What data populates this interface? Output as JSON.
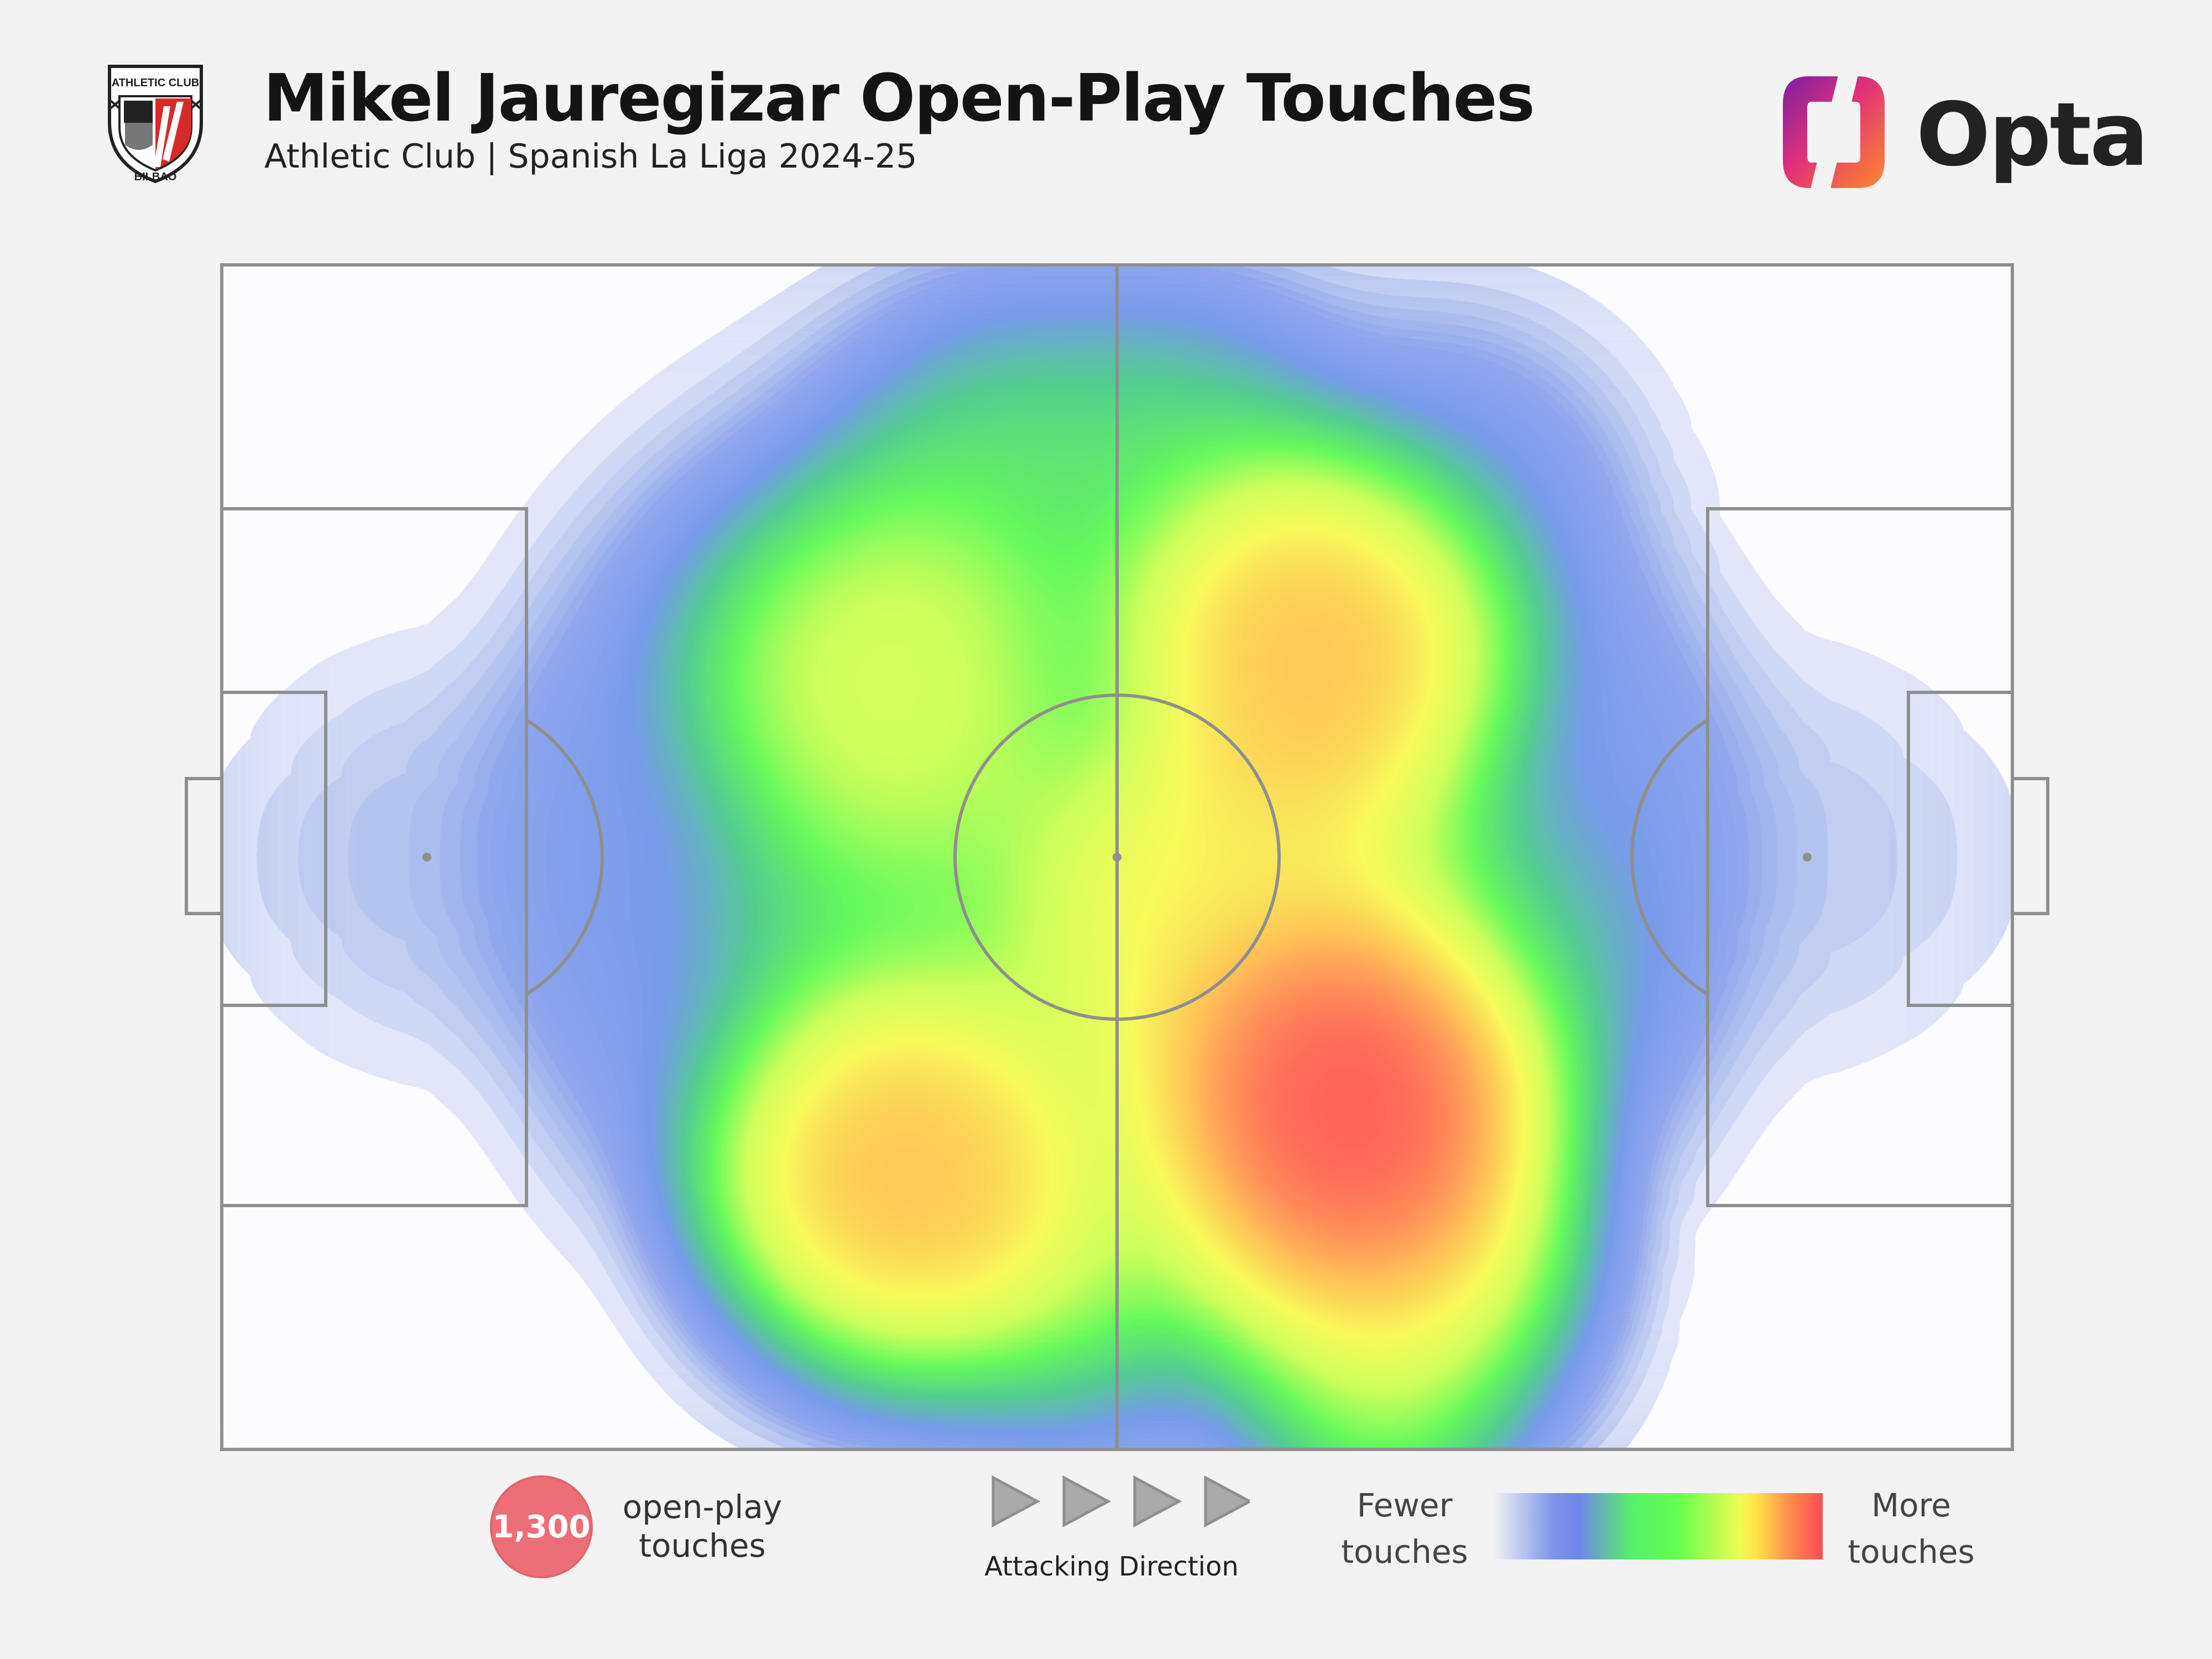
{
  "header": {
    "title": "Mikel Jauregizar Open-Play Touches",
    "subtitle": "Athletic Club | Spanish La Liga 2024-25",
    "crest_top_text": "ATHLETIC CLUB",
    "crest_bottom_text": "BILBAO",
    "brand_name": "Opta"
  },
  "chart_data": {
    "type": "heatmap",
    "title": "Mikel Jauregizar Open-Play Touches",
    "subtitle": "Athletic Club | Spanish La Liga 2024-25",
    "attacking_direction": "left-to-right",
    "colorscale": [
      "#7f95e8",
      "#64ff4f",
      "#f4fb55",
      "#ff4d52"
    ],
    "hotspots": [
      {
        "x": 37,
        "y": 35,
        "intensity": 0.62
      },
      {
        "x": 38,
        "y": 77,
        "intensity": 0.8
      },
      {
        "x": 61,
        "y": 33,
        "intensity": 0.8
      },
      {
        "x": 55,
        "y": 55,
        "intensity": 0.7
      },
      {
        "x": 63,
        "y": 71,
        "intensity": 0.98
      },
      {
        "x": 65,
        "y": 83,
        "intensity": 0.7
      },
      {
        "x": 60,
        "y": 52,
        "intensity": 0.6
      },
      {
        "x": 45,
        "y": 52,
        "intensity": 0.5
      },
      {
        "x": 47,
        "y": 80,
        "intensity": 0.55
      },
      {
        "x": 44,
        "y": 20,
        "intensity": 0.45
      },
      {
        "x": 53,
        "y": 20,
        "intensity": 0.45
      },
      {
        "x": 38,
        "y": 56,
        "intensity": 0.45
      },
      {
        "x": 69,
        "y": 60,
        "intensity": 0.4
      },
      {
        "x": 12,
        "y": 50,
        "intensity": 0.14
      },
      {
        "x": 88,
        "y": 50,
        "intensity": 0.1
      },
      {
        "x": 68,
        "y": 22,
        "intensity": 0.3
      }
    ]
  },
  "legend": {
    "total_touches": "1,300",
    "touches_caption": [
      "open-play",
      "touches"
    ],
    "attacking_direction_label": "Attacking Direction",
    "arrow_count": 4,
    "fewer_label": [
      "Fewer",
      "touches"
    ],
    "more_label": [
      "More",
      "touches"
    ]
  }
}
